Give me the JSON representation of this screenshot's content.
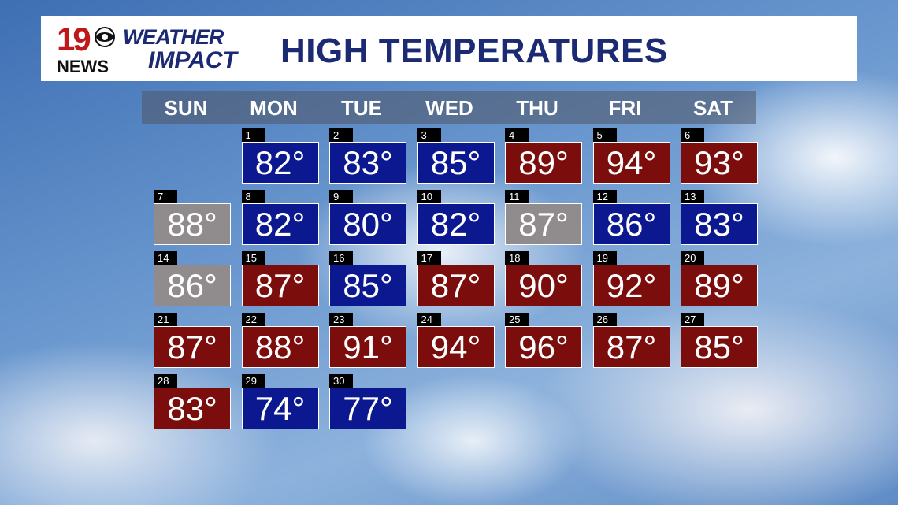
{
  "header": {
    "logo_number": "19",
    "logo_station": "NEWS",
    "brand_top": "WEATHER",
    "brand_bottom": "IMPACT",
    "title": "HIGH TEMPERATURES"
  },
  "calendar": {
    "weekdays": [
      "SUN",
      "MON",
      "TUE",
      "WED",
      "THU",
      "FRI",
      "SAT"
    ],
    "weeks": [
      [
        null,
        {
          "day": "1",
          "temp": "82°",
          "color": "#0c1890"
        },
        {
          "day": "2",
          "temp": "83°",
          "color": "#0c1890"
        },
        {
          "day": "3",
          "temp": "85°",
          "color": "#0c1890"
        },
        {
          "day": "4",
          "temp": "89°",
          "color": "#7c0d0d"
        },
        {
          "day": "5",
          "temp": "94°",
          "color": "#7c0d0d"
        },
        {
          "day": "6",
          "temp": "93°",
          "color": "#7c0d0d"
        }
      ],
      [
        {
          "day": "7",
          "temp": "88°",
          "color": "#908b8d"
        },
        {
          "day": "8",
          "temp": "82°",
          "color": "#0c1890"
        },
        {
          "day": "9",
          "temp": "80°",
          "color": "#0c1890"
        },
        {
          "day": "10",
          "temp": "82°",
          "color": "#0c1890"
        },
        {
          "day": "11",
          "temp": "87°",
          "color": "#908b8d"
        },
        {
          "day": "12",
          "temp": "86°",
          "color": "#0c1890"
        },
        {
          "day": "13",
          "temp": "83°",
          "color": "#0c1890"
        }
      ],
      [
        {
          "day": "14",
          "temp": "86°",
          "color": "#908b8d"
        },
        {
          "day": "15",
          "temp": "87°",
          "color": "#7c0d0d"
        },
        {
          "day": "16",
          "temp": "85°",
          "color": "#0c1890"
        },
        {
          "day": "17",
          "temp": "87°",
          "color": "#7c0d0d"
        },
        {
          "day": "18",
          "temp": "90°",
          "color": "#7c0d0d"
        },
        {
          "day": "19",
          "temp": "92°",
          "color": "#7c0d0d"
        },
        {
          "day": "20",
          "temp": "89°",
          "color": "#7c0d0d"
        }
      ],
      [
        {
          "day": "21",
          "temp": "87°",
          "color": "#7c0d0d"
        },
        {
          "day": "22",
          "temp": "88°",
          "color": "#7c0d0d"
        },
        {
          "day": "23",
          "temp": "91°",
          "color": "#7c0d0d"
        },
        {
          "day": "24",
          "temp": "94°",
          "color": "#7c0d0d"
        },
        {
          "day": "25",
          "temp": "96°",
          "color": "#7c0d0d"
        },
        {
          "day": "26",
          "temp": "87°",
          "color": "#7c0d0d"
        },
        {
          "day": "27",
          "temp": "85°",
          "color": "#7c0d0d"
        }
      ],
      [
        {
          "day": "28",
          "temp": "83°",
          "color": "#7c0d0d"
        },
        {
          "day": "29",
          "temp": "74°",
          "color": "#0c1890"
        },
        {
          "day": "30",
          "temp": "77°",
          "color": "#0c1890"
        },
        null,
        null,
        null,
        null
      ]
    ]
  }
}
